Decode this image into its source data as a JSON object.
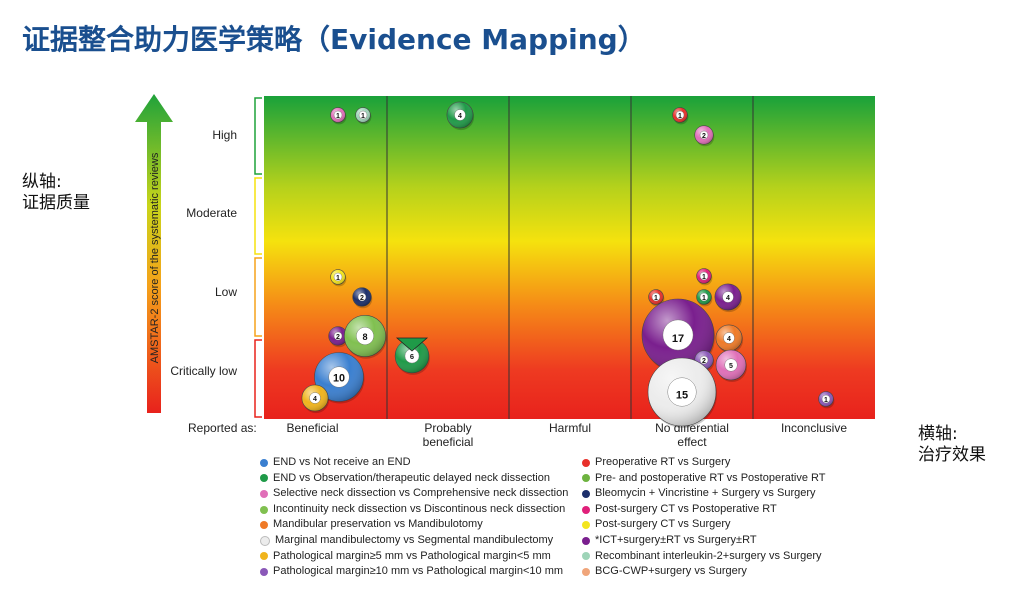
{
  "page": {
    "title": "证据整合助力医学策略（Evidence Mapping）",
    "y_note": [
      "纵轴:",
      "证据质量"
    ],
    "x_note": [
      "横轴:",
      "治疗效果"
    ]
  },
  "chart_data": {
    "type": "scatter",
    "subtype": "bubble evidence map",
    "ylabel": "AMSTAR-2 score of the systematic reviews",
    "x_prefix": "Reported as:",
    "x_categories": [
      "Beneficial",
      "Probably beneficial",
      "Harmful",
      "No differential effect",
      "Inconclusive"
    ],
    "y_categories": [
      "Critically low",
      "Low",
      "Moderate",
      "High"
    ],
    "background": "gradient green (top) to yellow to red (bottom)",
    "grid": "vertical lines between effect categories",
    "legend_placement": "bottom, two columns",
    "legend": [
      {
        "label": "END vs Not receive an END",
        "color": "#3a7fd0"
      },
      {
        "label": "END vs Observation/therapeutic delayed neck dissection",
        "color": "#1f9a48"
      },
      {
        "label": "Selective neck dissection vs Comprehensive neck dissection",
        "color": "#e06fb8"
      },
      {
        "label": "Incontinuity neck dissection vs Discontinous neck dissection",
        "color": "#80c050"
      },
      {
        "label": "Mandibular preservation vs Mandibulotomy",
        "color": "#ef7a27"
      },
      {
        "label": "Marginal mandibulectomy vs Segmental mandibulectomy",
        "color": "#ececec"
      },
      {
        "label": "Pathological margin≥5 mm vs Pathological margin<5 mm",
        "color": "#f0b41c"
      },
      {
        "label": "Pathological margin≥10 mm vs Pathological margin<10 mm",
        "color": "#8a58b8"
      },
      {
        "label": "Preoperative RT vs Surgery",
        "color": "#e8302a"
      },
      {
        "label": "Pre- and postoperative RT vs Postoperative RT",
        "color": "#6db33f"
      },
      {
        "label": "Bleomycin + Vincristine + Surgery vs Surgery",
        "color": "#1c2f6b"
      },
      {
        "label": "Post-surgery CT vs Postoperative RT",
        "color": "#e0207a"
      },
      {
        "label": "Post-surgery CT vs Surgery",
        "color": "#f3e51e"
      },
      {
        "label": "*ICT+surgery±RT vs Surgery±RT",
        "color": "#7a1f8e"
      },
      {
        "label": "Recombinant interleukin-2+surgery vs Surgery",
        "color": "#9ed4b8"
      },
      {
        "label": "BCG-CWP+surgery vs Surgery",
        "color": "#f0a57a"
      }
    ],
    "points": [
      {
        "effect": "Beneficial",
        "quality": "High",
        "count": 1,
        "color": "#e06fb8"
      },
      {
        "effect": "Beneficial",
        "quality": "High",
        "count": 1,
        "color": "#9ed4b8"
      },
      {
        "effect": "Probably beneficial",
        "quality": "High",
        "count": 4,
        "color": "#1f9a48"
      },
      {
        "effect": "No differential effect",
        "quality": "High",
        "count": 1,
        "color": "#e8302a"
      },
      {
        "effect": "No differential effect",
        "quality": "High",
        "count": 2,
        "color": "#e06fb8"
      },
      {
        "effect": "Beneficial",
        "quality": "Low",
        "count": 1,
        "color": "#f3e51e"
      },
      {
        "effect": "Beneficial",
        "quality": "Low",
        "count": 2,
        "color": "#1c2f6b"
      },
      {
        "effect": "Beneficial",
        "quality": "Critically low",
        "count": 2,
        "color": "#7a1f8e"
      },
      {
        "effect": "Beneficial",
        "quality": "Critically low",
        "count": 8,
        "color": "#80c050"
      },
      {
        "effect": "Beneficial",
        "quality": "Critically low",
        "count": 10,
        "color": "#3a7fd0"
      },
      {
        "effect": "Beneficial",
        "quality": "Critically low",
        "count": 4,
        "color": "#f0b41c"
      },
      {
        "effect": "Probably beneficial",
        "quality": "Critically low",
        "count": 6,
        "color": "#1f9a48"
      },
      {
        "effect": "No differential effect",
        "quality": "Low",
        "count": 1,
        "color": "#e8302a"
      },
      {
        "effect": "No differential effect",
        "quality": "Low",
        "count": 1,
        "color": "#e0207a"
      },
      {
        "effect": "No differential effect",
        "quality": "Low",
        "count": 1,
        "color": "#1f9a48"
      },
      {
        "effect": "No differential effect",
        "quality": "Low",
        "count": 4,
        "color": "#7a1f8e"
      },
      {
        "effect": "No differential effect",
        "quality": "Critically low",
        "count": 17,
        "color": "#7a1f8e"
      },
      {
        "effect": "No differential effect",
        "quality": "Critically low",
        "count": 4,
        "color": "#ef7a27"
      },
      {
        "effect": "No differential effect",
        "quality": "Critically low",
        "count": 2,
        "color": "#8a58b8"
      },
      {
        "effect": "No differential effect",
        "quality": "Critically low",
        "count": 5,
        "color": "#e06fb8"
      },
      {
        "effect": "No differential effect",
        "quality": "Critically low",
        "count": 15,
        "color": "#ececec"
      },
      {
        "effect": "Inconclusive",
        "quality": "Critically low",
        "count": 1,
        "color": "#8a58b8"
      }
    ]
  }
}
